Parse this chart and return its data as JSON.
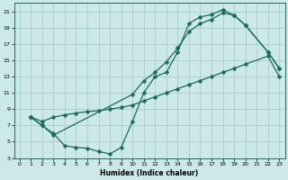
{
  "xlabel": "Humidex (Indice chaleur)",
  "bg_color": "#cce8e8",
  "grid_color": "#aacccc",
  "line_color": "#1a6b5a",
  "xlim": [
    -0.5,
    23.5
  ],
  "ylim": [
    3,
    22
  ],
  "xticks": [
    0,
    1,
    2,
    3,
    4,
    5,
    6,
    7,
    8,
    9,
    10,
    11,
    12,
    13,
    14,
    15,
    16,
    17,
    18,
    19,
    20,
    21,
    22,
    23
  ],
  "yticks": [
    3,
    5,
    7,
    9,
    11,
    13,
    15,
    17,
    19,
    21
  ],
  "line1_x": [
    1,
    2,
    3,
    4,
    5,
    6,
    7,
    8,
    9,
    10,
    11,
    12,
    13,
    14,
    15,
    16,
    17,
    18,
    19,
    20,
    22,
    23
  ],
  "line1_y": [
    8,
    7,
    6,
    4.5,
    4.3,
    4.2,
    3.8,
    3.5,
    4.3,
    7.5,
    11.0,
    13.0,
    13.5,
    16.0,
    19.5,
    20.3,
    20.6,
    21.2,
    20.5,
    19.3,
    16.0,
    14.0
  ],
  "line2_x": [
    1,
    2,
    3,
    4,
    5,
    6,
    7,
    8,
    9,
    10,
    11,
    12,
    13,
    14,
    15,
    16,
    17,
    18,
    19,
    20,
    22,
    23
  ],
  "line2_y": [
    8,
    7.5,
    8.0,
    8.3,
    8.5,
    8.7,
    8.8,
    9.0,
    9.2,
    9.5,
    10.0,
    10.5,
    11.0,
    11.5,
    12.0,
    12.5,
    13.0,
    13.5,
    14.0,
    14.5,
    15.5,
    13.0
  ],
  "line3_x": [
    1,
    2,
    3,
    10,
    11,
    12,
    13,
    14,
    15,
    16,
    17,
    18,
    19,
    20,
    22,
    23
  ],
  "line3_y": [
    8,
    7,
    5.8,
    10.8,
    12.5,
    13.5,
    14.8,
    16.5,
    18.5,
    19.5,
    20.0,
    20.8,
    20.5,
    19.3,
    16.0,
    14.0
  ]
}
